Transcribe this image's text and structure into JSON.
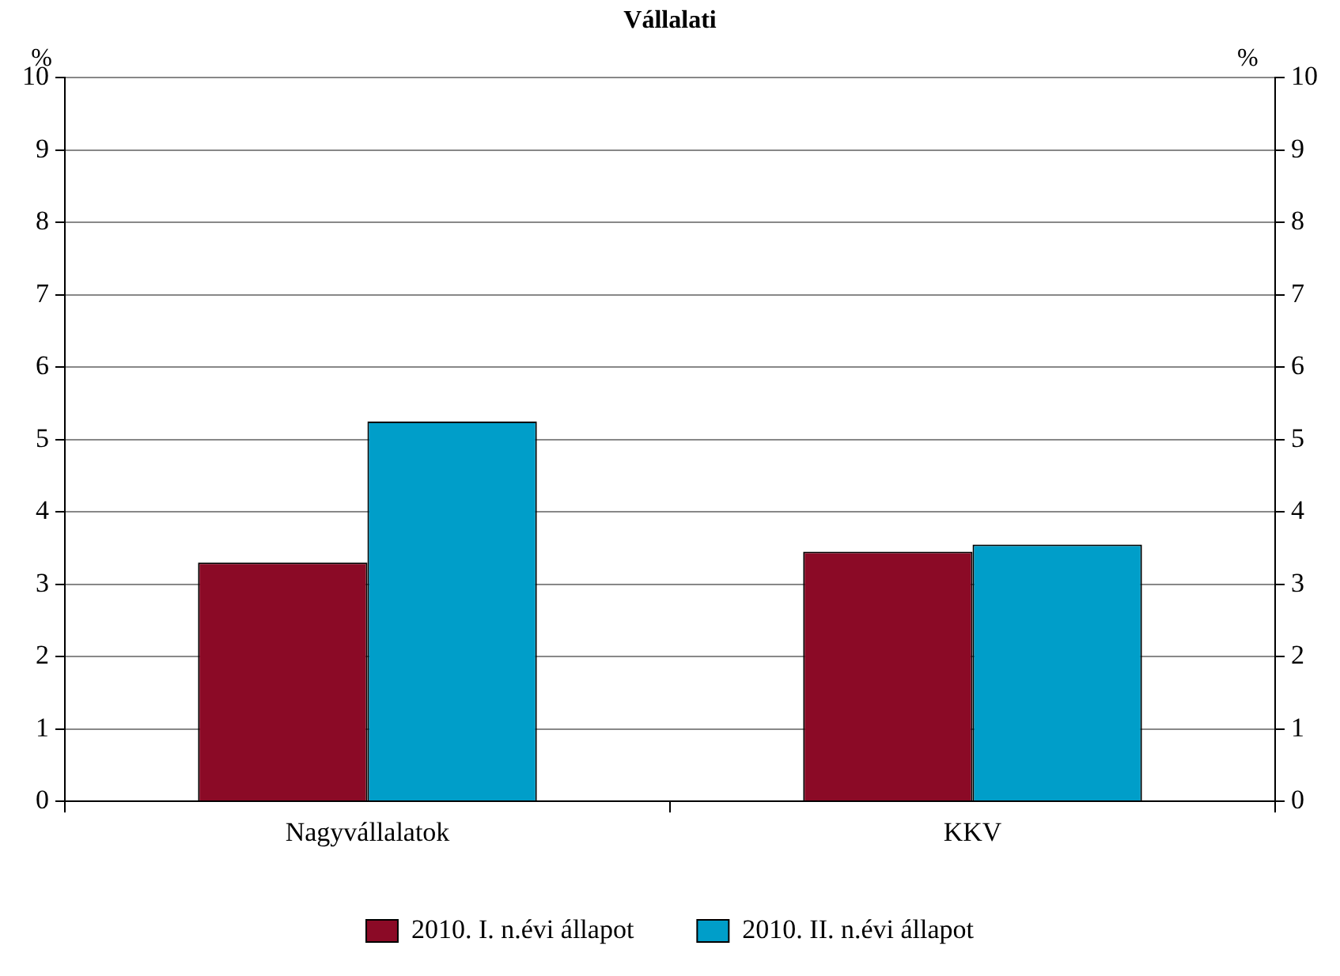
{
  "chart_data": {
    "type": "bar",
    "title": "Vállalati",
    "ylabel": "%",
    "y2label": "%",
    "categories": [
      "Nagyvállalatok",
      "KKV"
    ],
    "series": [
      {
        "name": "2010. I. n.évi állapot",
        "color": "#8b0a26",
        "values": [
          3.3,
          3.45
        ]
      },
      {
        "name": "2010. II. n.évi állapot",
        "color": "#009ec9",
        "values": [
          5.25,
          3.55
        ]
      }
    ],
    "ylim": [
      0,
      10
    ],
    "yticks": [
      0,
      1,
      2,
      3,
      4,
      5,
      6,
      7,
      8,
      9,
      10
    ],
    "y2lim": [
      0,
      10
    ],
    "y2ticks": [
      0,
      1,
      2,
      3,
      4,
      5,
      6,
      7,
      8,
      9,
      10
    ],
    "grid": "y",
    "legend": "bottom"
  }
}
